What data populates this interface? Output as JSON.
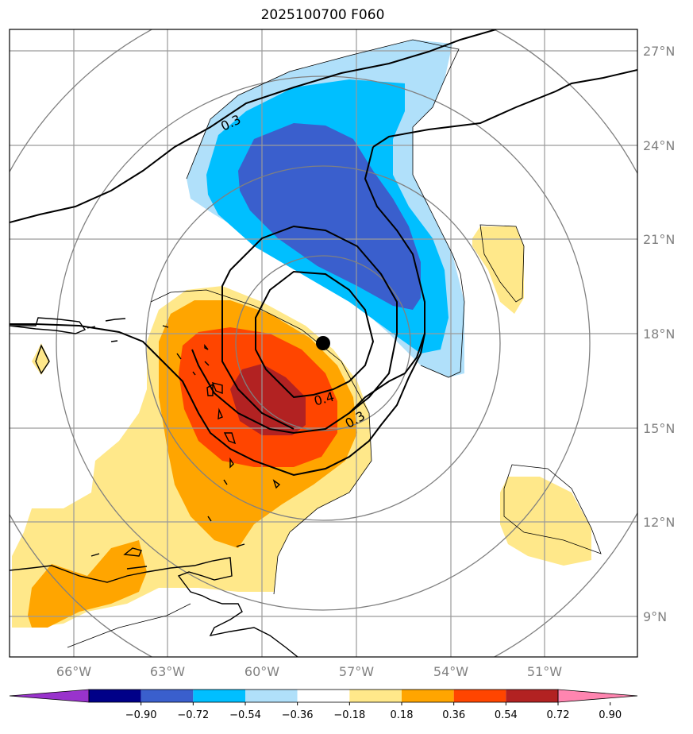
{
  "title": "2025100700 F060",
  "lat_labels": [
    "27°N",
    "24°N",
    "21°N",
    "18°N",
    "15°N",
    "12°N",
    "9°N"
  ],
  "lon_labels": [
    "66°W",
    "63°W",
    "60°W",
    "57°W",
    "54°W",
    "51°W"
  ],
  "contour_labels": [
    "0.3",
    "0.4",
    "0.3"
  ],
  "colorbar": {
    "ticks": [
      "−0.90",
      "−0.72",
      "−0.54",
      "−0.36",
      "−0.18",
      "0.18",
      "0.36",
      "0.54",
      "0.72",
      "0.90"
    ],
    "colors": [
      "#9933cc",
      "#000088",
      "#3a5fcd",
      "#00bfff",
      "#b0e0fa",
      "#ffffff",
      "#ffe88a",
      "#ffa500",
      "#ff4500",
      "#b22222",
      "#ff85b0"
    ]
  },
  "storm_center": {
    "lat": 17.7,
    "lon": -57.9
  }
}
